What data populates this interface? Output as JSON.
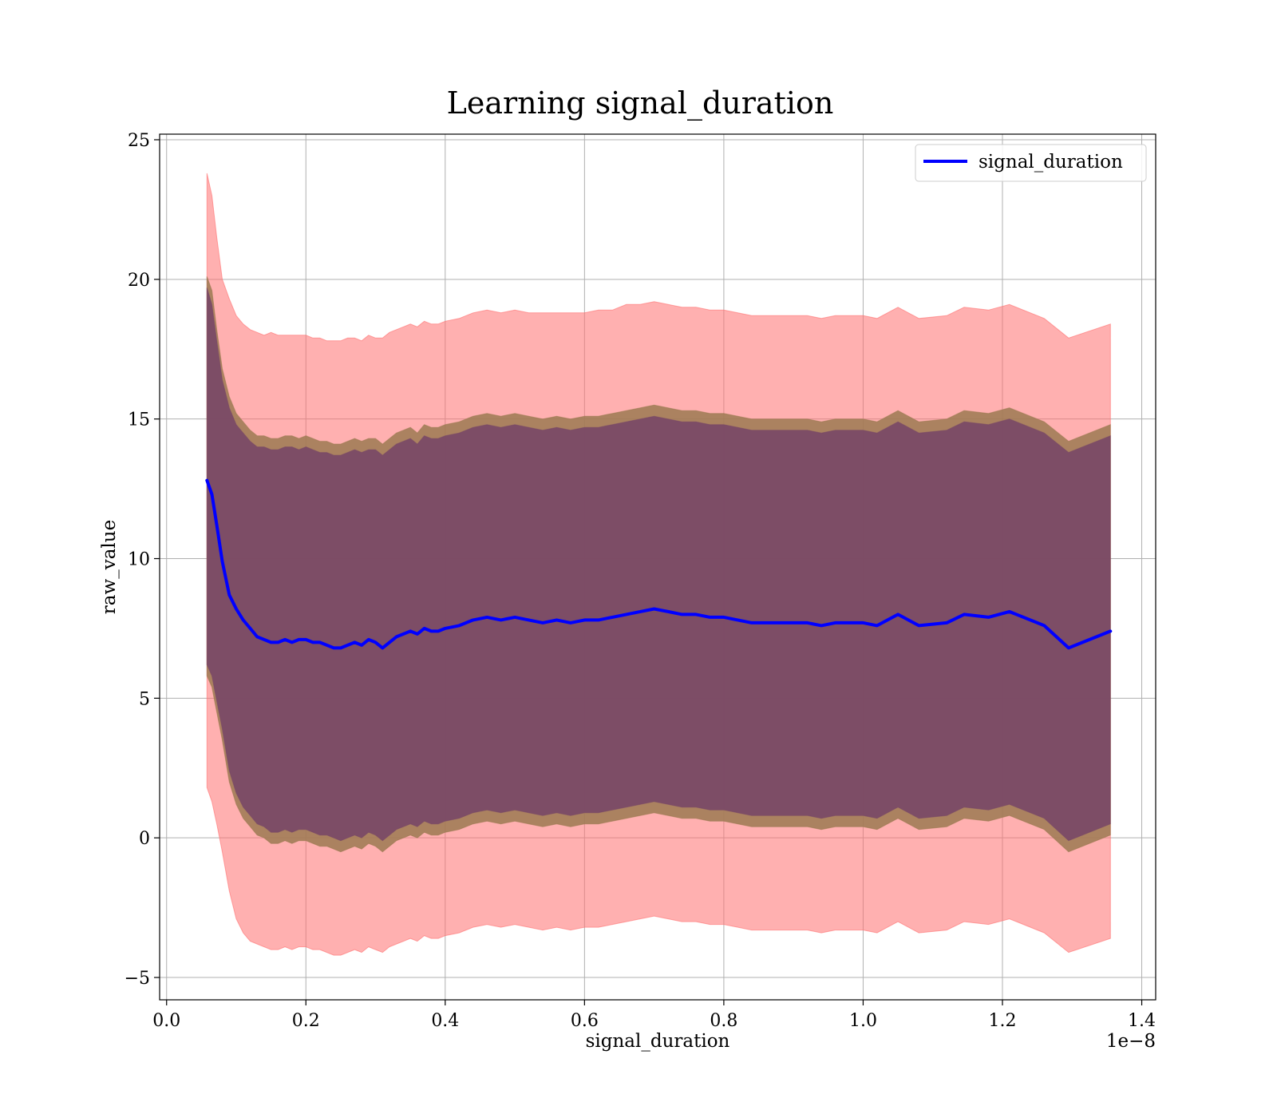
{
  "chart_data": {
    "type": "line",
    "title": "Learning signal_duration",
    "xlabel": "signal_duration",
    "ylabel": "raw_value",
    "x_offset_label": "1e−8",
    "xlim": [
      -0.01,
      1.42
    ],
    "ylim": [
      -5.8,
      25.2
    ],
    "x_ticks": [
      0.0,
      0.2,
      0.4,
      0.6,
      0.8,
      1.0,
      1.2,
      1.4
    ],
    "x_tick_labels": [
      "0.0",
      "0.2",
      "0.4",
      "0.6",
      "0.8",
      "1.0",
      "1.2",
      "1.4"
    ],
    "y_ticks": [
      -5,
      0,
      5,
      10,
      15,
      20,
      25
    ],
    "y_tick_labels": [
      "−5",
      "0",
      "5",
      "10",
      "15",
      "20",
      "25"
    ],
    "grid": true,
    "legend": {
      "position": "top-right",
      "entries": [
        "signal_duration"
      ]
    },
    "colors": {
      "line": "#0000ff",
      "outer_band": "#ff6f6f",
      "middle_band": "#9c7a52",
      "inner_band": "#7a4a66"
    },
    "x": [
      0.058,
      0.065,
      0.072,
      0.08,
      0.09,
      0.1,
      0.11,
      0.12,
      0.13,
      0.14,
      0.15,
      0.16,
      0.17,
      0.18,
      0.19,
      0.2,
      0.21,
      0.22,
      0.23,
      0.24,
      0.25,
      0.26,
      0.27,
      0.28,
      0.29,
      0.3,
      0.31,
      0.32,
      0.33,
      0.34,
      0.35,
      0.36,
      0.37,
      0.38,
      0.39,
      0.4,
      0.42,
      0.44,
      0.46,
      0.48,
      0.5,
      0.52,
      0.54,
      0.56,
      0.58,
      0.6,
      0.62,
      0.64,
      0.66,
      0.68,
      0.7,
      0.72,
      0.74,
      0.76,
      0.78,
      0.8,
      0.82,
      0.84,
      0.86,
      0.88,
      0.9,
      0.92,
      0.94,
      0.96,
      0.98,
      1.0,
      1.02,
      1.05,
      1.08,
      1.12,
      1.145,
      1.18,
      1.21,
      1.26,
      1.295,
      1.355
    ],
    "series": [
      {
        "name": "signal_duration",
        "values": [
          12.8,
          12.3,
          11.2,
          9.9,
          8.7,
          8.2,
          7.8,
          7.5,
          7.2,
          7.1,
          7.0,
          7.0,
          7.1,
          7.0,
          7.1,
          7.1,
          7.0,
          7.0,
          6.9,
          6.8,
          6.8,
          6.9,
          7.0,
          6.9,
          7.1,
          7.0,
          6.8,
          7.0,
          7.2,
          7.3,
          7.4,
          7.3,
          7.5,
          7.4,
          7.4,
          7.5,
          7.6,
          7.8,
          7.9,
          7.8,
          7.9,
          7.8,
          7.7,
          7.8,
          7.7,
          7.8,
          7.8,
          7.9,
          8.0,
          8.1,
          8.2,
          8.1,
          8.0,
          8.0,
          7.9,
          7.9,
          7.8,
          7.7,
          7.7,
          7.7,
          7.7,
          7.7,
          7.6,
          7.7,
          7.7,
          7.7,
          7.6,
          8.0,
          7.6,
          7.7,
          8.0,
          7.9,
          8.1,
          7.6,
          6.8,
          7.4
        ]
      }
    ],
    "bands": [
      {
        "upper": [
          23.8,
          23.0,
          21.5,
          20.0,
          19.3,
          18.7,
          18.4,
          18.2,
          18.1,
          18.0,
          18.1,
          18.0,
          18.0,
          18.0,
          18.0,
          18.0,
          17.9,
          17.9,
          17.8,
          17.8,
          17.8,
          17.9,
          17.9,
          17.8,
          18.0,
          17.9,
          17.9,
          18.1,
          18.2,
          18.3,
          18.4,
          18.3,
          18.5,
          18.4,
          18.4,
          18.5,
          18.6,
          18.8,
          18.9,
          18.8,
          18.9,
          18.8,
          18.8,
          18.8,
          18.8,
          18.8,
          18.9,
          18.9,
          19.1,
          19.1,
          19.2,
          19.1,
          19.0,
          19.0,
          18.9,
          18.9,
          18.8,
          18.7,
          18.7,
          18.7,
          18.7,
          18.7,
          18.6,
          18.7,
          18.7,
          18.7,
          18.6,
          19.0,
          18.6,
          18.7,
          19.0,
          18.9,
          19.1,
          18.6,
          17.9,
          18.4
        ],
        "lower": [
          1.8,
          1.3,
          0.5,
          -0.5,
          -1.9,
          -2.9,
          -3.4,
          -3.7,
          -3.8,
          -3.9,
          -4.0,
          -4.0,
          -3.9,
          -4.0,
          -3.9,
          -3.9,
          -4.0,
          -4.0,
          -4.1,
          -4.2,
          -4.2,
          -4.1,
          -4.0,
          -4.1,
          -3.9,
          -4.0,
          -4.1,
          -3.9,
          -3.8,
          -3.7,
          -3.6,
          -3.7,
          -3.5,
          -3.6,
          -3.6,
          -3.5,
          -3.4,
          -3.2,
          -3.1,
          -3.2,
          -3.1,
          -3.2,
          -3.3,
          -3.2,
          -3.3,
          -3.2,
          -3.2,
          -3.1,
          -3.0,
          -2.9,
          -2.8,
          -2.9,
          -3.0,
          -3.0,
          -3.1,
          -3.1,
          -3.2,
          -3.3,
          -3.3,
          -3.3,
          -3.3,
          -3.3,
          -3.4,
          -3.3,
          -3.3,
          -3.3,
          -3.4,
          -3.0,
          -3.4,
          -3.3,
          -3.0,
          -3.1,
          -2.9,
          -3.4,
          -4.1,
          -3.6
        ]
      },
      {
        "upper": [
          20.1,
          19.6,
          18.2,
          16.8,
          15.8,
          15.2,
          14.9,
          14.6,
          14.4,
          14.4,
          14.3,
          14.3,
          14.4,
          14.4,
          14.3,
          14.4,
          14.3,
          14.2,
          14.2,
          14.1,
          14.1,
          14.2,
          14.3,
          14.2,
          14.3,
          14.3,
          14.1,
          14.3,
          14.5,
          14.6,
          14.7,
          14.5,
          14.8,
          14.7,
          14.7,
          14.8,
          14.9,
          15.1,
          15.2,
          15.1,
          15.2,
          15.1,
          15.0,
          15.1,
          15.0,
          15.1,
          15.1,
          15.2,
          15.3,
          15.4,
          15.5,
          15.4,
          15.3,
          15.3,
          15.2,
          15.2,
          15.1,
          15.0,
          15.0,
          15.0,
          15.0,
          15.0,
          14.9,
          15.0,
          15.0,
          15.0,
          14.9,
          15.3,
          14.9,
          15.0,
          15.3,
          15.2,
          15.4,
          14.9,
          14.2,
          14.8
        ],
        "lower": [
          5.8,
          5.4,
          4.5,
          3.5,
          2.0,
          1.2,
          0.7,
          0.4,
          0.1,
          0.0,
          -0.2,
          -0.2,
          -0.1,
          -0.2,
          -0.1,
          -0.1,
          -0.2,
          -0.3,
          -0.3,
          -0.4,
          -0.5,
          -0.4,
          -0.3,
          -0.4,
          -0.2,
          -0.3,
          -0.5,
          -0.3,
          -0.1,
          0.0,
          0.1,
          0.0,
          0.2,
          0.1,
          0.1,
          0.2,
          0.3,
          0.5,
          0.6,
          0.5,
          0.6,
          0.5,
          0.4,
          0.5,
          0.4,
          0.5,
          0.5,
          0.6,
          0.7,
          0.8,
          0.9,
          0.8,
          0.7,
          0.7,
          0.6,
          0.6,
          0.5,
          0.4,
          0.4,
          0.4,
          0.4,
          0.4,
          0.3,
          0.4,
          0.4,
          0.4,
          0.3,
          0.7,
          0.3,
          0.4,
          0.7,
          0.6,
          0.8,
          0.3,
          -0.5,
          0.1
        ]
      },
      {
        "upper": [
          19.7,
          19.1,
          17.8,
          16.4,
          15.4,
          14.8,
          14.5,
          14.2,
          14.0,
          14.0,
          13.9,
          13.9,
          14.0,
          14.0,
          13.9,
          14.0,
          13.9,
          13.8,
          13.8,
          13.7,
          13.7,
          13.8,
          13.9,
          13.8,
          13.9,
          13.9,
          13.7,
          13.9,
          14.1,
          14.2,
          14.3,
          14.1,
          14.4,
          14.3,
          14.3,
          14.4,
          14.5,
          14.7,
          14.8,
          14.7,
          14.8,
          14.7,
          14.6,
          14.7,
          14.6,
          14.7,
          14.7,
          14.8,
          14.9,
          15.0,
          15.1,
          15.0,
          14.9,
          14.9,
          14.8,
          14.8,
          14.7,
          14.6,
          14.6,
          14.6,
          14.6,
          14.6,
          14.5,
          14.6,
          14.6,
          14.6,
          14.5,
          14.9,
          14.5,
          14.6,
          14.9,
          14.8,
          15.0,
          14.5,
          13.8,
          14.4
        ],
        "lower": [
          6.2,
          5.8,
          4.9,
          3.9,
          2.4,
          1.6,
          1.1,
          0.8,
          0.5,
          0.4,
          0.2,
          0.2,
          0.3,
          0.2,
          0.3,
          0.3,
          0.2,
          0.1,
          0.1,
          0.0,
          -0.1,
          0.0,
          0.1,
          0.0,
          0.2,
          0.1,
          -0.1,
          0.1,
          0.3,
          0.4,
          0.5,
          0.4,
          0.6,
          0.5,
          0.5,
          0.6,
          0.7,
          0.9,
          1.0,
          0.9,
          1.0,
          0.9,
          0.8,
          0.9,
          0.8,
          0.9,
          0.9,
          1.0,
          1.1,
          1.2,
          1.3,
          1.2,
          1.1,
          1.1,
          1.0,
          1.0,
          0.9,
          0.8,
          0.8,
          0.8,
          0.8,
          0.8,
          0.7,
          0.8,
          0.8,
          0.8,
          0.7,
          1.1,
          0.7,
          0.8,
          1.1,
          1.0,
          1.2,
          0.7,
          -0.1,
          0.5
        ]
      }
    ]
  }
}
